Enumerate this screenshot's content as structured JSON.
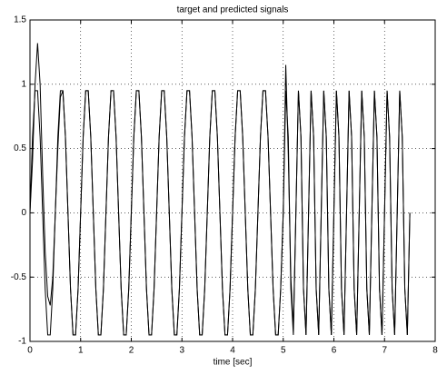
{
  "chart_data": {
    "type": "line",
    "title": "target and predicted signals",
    "xlabel": "time [sec]",
    "x": [
      0,
      0.05,
      0.1,
      0.15,
      0.2,
      0.25,
      0.3,
      0.35,
      0.4,
      0.45,
      0.5,
      0.55,
      0.6,
      0.65,
      0.7,
      0.75,
      0.8,
      0.85,
      0.9,
      0.95,
      1,
      1.05,
      1.1,
      1.15,
      1.2,
      1.25,
      1.3,
      1.35,
      1.4,
      1.45,
      1.5,
      1.55,
      1.6,
      1.65,
      1.7,
      1.75,
      1.8,
      1.85,
      1.9,
      1.95,
      2,
      2.05,
      2.1,
      2.15,
      2.2,
      2.25,
      2.3,
      2.35,
      2.4,
      2.45,
      2.5,
      2.55,
      2.6,
      2.65,
      2.7,
      2.75,
      2.8,
      2.85,
      2.9,
      2.95,
      3,
      3.05,
      3.1,
      3.15,
      3.2,
      3.25,
      3.3,
      3.35,
      3.4,
      3.45,
      3.5,
      3.55,
      3.6,
      3.65,
      3.7,
      3.75,
      3.8,
      3.85,
      3.9,
      3.95,
      4,
      4.05,
      4.1,
      4.15,
      4.2,
      4.25,
      4.3,
      4.35,
      4.4,
      4.45,
      4.5,
      4.55,
      4.6,
      4.65,
      4.7,
      4.75,
      4.8,
      4.85,
      4.9,
      4.95,
      5,
      5.05,
      5.1,
      5.15,
      5.2,
      5.25,
      5.3,
      5.35,
      5.4,
      5.45,
      5.5,
      5.55,
      5.6,
      5.65,
      5.7,
      5.75,
      5.8,
      5.85,
      5.9,
      5.95,
      6,
      6.05,
      6.1,
      6.15,
      6.2,
      6.25,
      6.3,
      6.35,
      6.4,
      6.45,
      6.5,
      6.55,
      6.6,
      6.65,
      6.7,
      6.75,
      6.8,
      6.85,
      6.9,
      6.95,
      7,
      7.05,
      7.1,
      7.15,
      7.2,
      7.25,
      7.3,
      7.35,
      7.4,
      7.45,
      7.5
    ],
    "series": [
      {
        "color": "#000000",
        "values": [
          0,
          0.59,
          0.95,
          0.95,
          0.59,
          0,
          -0.59,
          -0.95,
          -0.95,
          -0.59,
          0,
          0.59,
          0.95,
          0.95,
          0.59,
          0,
          -0.59,
          -0.95,
          -0.95,
          -0.59,
          0,
          0.59,
          0.95,
          0.95,
          0.59,
          0,
          -0.59,
          -0.95,
          -0.95,
          -0.59,
          0,
          0.59,
          0.95,
          0.95,
          0.59,
          0,
          -0.59,
          -0.95,
          -0.95,
          -0.59,
          0,
          0.59,
          0.95,
          0.95,
          0.59,
          0,
          -0.59,
          -0.95,
          -0.95,
          -0.59,
          0,
          0.59,
          0.95,
          0.95,
          0.59,
          0,
          -0.59,
          -0.95,
          -0.95,
          -0.59,
          0,
          0.59,
          0.95,
          0.95,
          0.59,
          0,
          -0.59,
          -0.95,
          -0.95,
          -0.59,
          0,
          0.59,
          0.95,
          0.95,
          0.59,
          0,
          -0.59,
          -0.95,
          -0.95,
          -0.59,
          0,
          0.59,
          0.95,
          0.95,
          0.59,
          0,
          -0.59,
          -0.95,
          -0.95,
          -0.59,
          0,
          0.59,
          0.95,
          0.95,
          0.59,
          0,
          -0.59,
          -0.95,
          -0.95,
          -0.59,
          0,
          0.95,
          0.59,
          -0.59,
          -0.95,
          0,
          0.95,
          0.59,
          -0.59,
          -0.95,
          0,
          0.95,
          0.59,
          -0.59,
          -0.95,
          0,
          0.95,
          0.59,
          -0.59,
          -0.95,
          0,
          0.95,
          0.59,
          -0.59,
          -0.95,
          0,
          0.95,
          0.59,
          -0.59,
          -0.95,
          0,
          0.95,
          0.59,
          -0.59,
          -0.95,
          0,
          0.95,
          0.59,
          -0.59,
          -0.95,
          0,
          0.95,
          0.59,
          -0.59,
          -0.95,
          0,
          0.95,
          0.59,
          -0.59,
          -0.95,
          0
        ]
      },
      {
        "color": "#000000",
        "values": [
          0,
          0.4,
          1.0,
          1.32,
          1.0,
          0.3,
          -0.3,
          -0.65,
          -0.72,
          -0.5,
          0,
          0.5,
          0.9,
          0.95,
          0.59,
          0,
          -0.59,
          -0.95,
          -0.95,
          -0.59,
          0,
          0.59,
          0.95,
          0.95,
          0.59,
          0,
          -0.59,
          -0.95,
          -0.95,
          -0.59,
          0,
          0.59,
          0.95,
          0.95,
          0.59,
          0,
          -0.59,
          -0.95,
          -0.95,
          -0.59,
          0,
          0.59,
          0.95,
          0.95,
          0.59,
          0,
          -0.59,
          -0.95,
          -0.95,
          -0.59,
          0,
          0.59,
          0.95,
          0.95,
          0.59,
          0,
          -0.59,
          -0.95,
          -0.95,
          -0.59,
          0,
          0.59,
          0.95,
          0.95,
          0.59,
          0,
          -0.59,
          -0.95,
          -0.95,
          -0.59,
          0,
          0.59,
          0.95,
          0.95,
          0.59,
          0,
          -0.59,
          -0.95,
          -0.95,
          -0.59,
          0,
          0.59,
          0.95,
          0.95,
          0.59,
          0,
          -0.59,
          -0.95,
          -0.95,
          -0.59,
          0,
          0.59,
          0.95,
          0.95,
          0.59,
          0,
          -0.59,
          -0.95,
          -0.95,
          -0.59,
          0,
          1.15,
          0.45,
          -0.5,
          -0.9,
          0,
          0.95,
          0.59,
          -0.59,
          -0.95,
          0,
          0.95,
          0.59,
          -0.59,
          -0.95,
          0,
          0.95,
          0.59,
          -0.59,
          -0.95,
          0,
          0.95,
          0.59,
          -0.59,
          -0.95,
          0,
          0.95,
          0.59,
          -0.59,
          -0.95,
          0,
          0.95,
          0.59,
          -0.59,
          -0.95,
          0,
          0.95,
          0.59,
          -0.59,
          -0.95,
          0,
          0.95,
          0.59,
          -0.59,
          -0.95,
          0,
          0.95,
          0.59,
          -0.59,
          -0.95,
          0
        ]
      }
    ],
    "xlim": [
      0,
      8
    ],
    "xticks": [
      0,
      1,
      2,
      3,
      4,
      5,
      6,
      7,
      8
    ],
    "ylim": [
      -1,
      1.5
    ],
    "yticks": [
      -1,
      -0.5,
      0,
      0.5,
      1,
      1.5
    ],
    "grid": true
  }
}
